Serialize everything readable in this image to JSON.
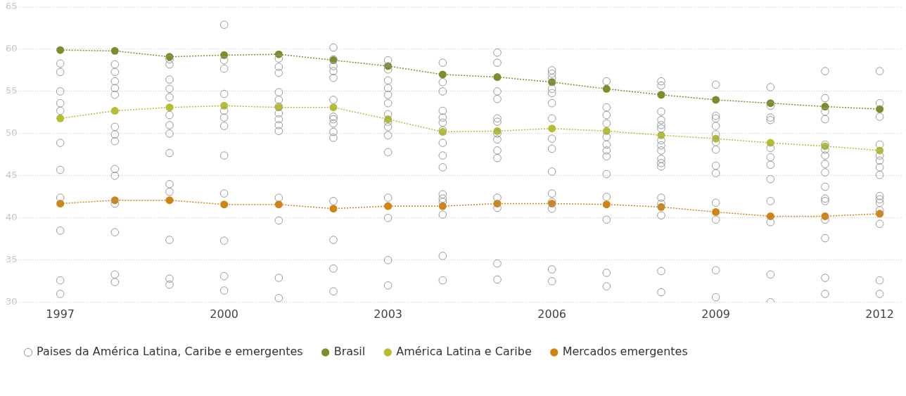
{
  "chart_data": {
    "type": "line",
    "x": [
      1997,
      1998,
      1999,
      2000,
      2001,
      2002,
      2003,
      2004,
      2005,
      2006,
      2007,
      2008,
      2009,
      2010,
      2011,
      2012
    ],
    "xlim": [
      1996,
      2012.4
    ],
    "xticks": [
      1997,
      2000,
      2003,
      2006,
      2009,
      2012
    ],
    "ylim": [
      30,
      65
    ],
    "yticks": [
      30,
      35,
      40,
      45,
      50,
      55,
      60,
      65
    ],
    "grid": "y",
    "legend": "bottom left",
    "marker": "circle",
    "line_style": "dotted",
    "series": [
      {
        "name": "Brasil",
        "color": "#7b8d2c",
        "values": [
          59.9,
          59.8,
          59.1,
          59.3,
          59.4,
          58.7,
          58.0,
          57.0,
          56.7,
          56.1,
          55.3,
          54.6,
          54.0,
          53.6,
          53.2,
          52.9
        ]
      },
      {
        "name": "América Latina e Caribe",
        "color": "#b5bd35",
        "values": [
          51.8,
          52.7,
          53.1,
          53.3,
          53.1,
          53.1,
          51.7,
          50.2,
          50.3,
          50.6,
          50.3,
          49.8,
          49.4,
          48.9,
          48.5,
          48.0
        ]
      },
      {
        "name": "Mercados emergentes",
        "color": "#cf8414",
        "values": [
          41.7,
          42.1,
          42.1,
          41.6,
          41.6,
          41.1,
          41.4,
          41.4,
          41.7,
          41.7,
          41.6,
          41.3,
          40.7,
          40.2,
          40.2,
          40.5
        ]
      },
      {
        "type": "scatter",
        "name": "Paises da América Latina, Caribe e emergentes",
        "color": "#999999",
        "x": [
          1997,
          1997,
          1997,
          1997,
          1997,
          1997,
          1997,
          1997,
          1997,
          1997,
          1997,
          1998,
          1998,
          1998,
          1998,
          1998,
          1998,
          1998,
          1998,
          1998,
          1998,
          1998,
          1998,
          1998,
          1998,
          1999,
          1999,
          1999,
          1999,
          1999,
          1999,
          1999,
          1999,
          1999,
          1999,
          1999,
          1999,
          1999,
          1999,
          2000,
          2000,
          2000,
          2000,
          2000,
          2000,
          2000,
          2000,
          2000,
          2000,
          2000,
          2000,
          2001,
          2001,
          2001,
          2001,
          2001,
          2001,
          2001,
          2001,
          2001,
          2001,
          2001,
          2001,
          2001,
          2001,
          2002,
          2002,
          2002,
          2002,
          2002,
          2002,
          2002,
          2002,
          2002,
          2002,
          2002,
          2002,
          2002,
          2002,
          2002,
          2003,
          2003,
          2003,
          2003,
          2003,
          2003,
          2003,
          2003,
          2003,
          2003,
          2003,
          2003,
          2003,
          2003,
          2003,
          2004,
          2004,
          2004,
          2004,
          2004,
          2004,
          2004,
          2004,
          2004,
          2004,
          2004,
          2004,
          2004,
          2004,
          2004,
          2004,
          2005,
          2005,
          2005,
          2005,
          2005,
          2005,
          2005,
          2005,
          2005,
          2005,
          2005,
          2005,
          2005,
          2005,
          2006,
          2006,
          2006,
          2006,
          2006,
          2006,
          2006,
          2006,
          2006,
          2006,
          2006,
          2006,
          2006,
          2006,
          2006,
          2007,
          2007,
          2007,
          2007,
          2007,
          2007,
          2007,
          2007,
          2007,
          2007,
          2007,
          2007,
          2007,
          2008,
          2008,
          2008,
          2008,
          2008,
          2008,
          2008,
          2008,
          2008,
          2008,
          2008,
          2008,
          2008,
          2008,
          2008,
          2008,
          2008,
          2009,
          2009,
          2009,
          2009,
          2009,
          2009,
          2009,
          2009,
          2009,
          2009,
          2009,
          2009,
          2009,
          2010,
          2010,
          2010,
          2010,
          2010,
          2010,
          2010,
          2010,
          2010,
          2010,
          2010,
          2010,
          2011,
          2011,
          2011,
          2011,
          2011,
          2011,
          2011,
          2011,
          2011,
          2011,
          2011,
          2011,
          2011,
          2011,
          2011,
          2011,
          2012,
          2012,
          2012,
          2012,
          2012,
          2012,
          2012,
          2012,
          2012,
          2012,
          2012,
          2012,
          2012,
          2012,
          2012
        ],
        "values": [
          58.3,
          57.3,
          55.0,
          53.6,
          52.7,
          48.9,
          45.7,
          42.4,
          38.5,
          32.6,
          31.0,
          58.2,
          57.3,
          56.2,
          55.4,
          54.6,
          50.8,
          49.9,
          49.1,
          45.8,
          45.0,
          41.7,
          38.3,
          33.3,
          32.4,
          58.8,
          58.2,
          56.4,
          55.3,
          54.3,
          52.2,
          51.0,
          50.0,
          47.7,
          44.0,
          43.1,
          37.4,
          32.8,
          32.1,
          62.9,
          58.7,
          57.7,
          54.7,
          52.7,
          51.9,
          50.9,
          47.4,
          42.9,
          37.3,
          33.1,
          31.4,
          58.9,
          57.9,
          57.2,
          54.9,
          54.0,
          53.2,
          52.4,
          51.7,
          51.0,
          50.3,
          42.4,
          39.7,
          32.9,
          30.5,
          60.2,
          58.8,
          58.0,
          57.4,
          56.6,
          54.0,
          52.0,
          51.7,
          51.2,
          50.2,
          49.5,
          42.0,
          37.4,
          34.0,
          31.3,
          58.7,
          57.6,
          56.3,
          55.4,
          54.6,
          53.6,
          52.3,
          51.4,
          50.8,
          49.8,
          47.8,
          42.4,
          40.0,
          35.0,
          32.0,
          58.4,
          56.1,
          55.0,
          52.7,
          51.9,
          51.3,
          50.4,
          48.9,
          47.4,
          46.0,
          42.8,
          42.3,
          41.9,
          40.4,
          35.5,
          32.6,
          59.6,
          58.4,
          55.0,
          54.1,
          51.8,
          51.4,
          50.0,
          49.3,
          48.0,
          47.1,
          42.4,
          41.2,
          34.6,
          32.7,
          57.5,
          57.1,
          56.6,
          55.3,
          54.8,
          53.6,
          51.8,
          49.4,
          48.2,
          45.5,
          42.9,
          41.9,
          41.1,
          33.9,
          32.5,
          56.2,
          53.1,
          52.2,
          51.2,
          49.6,
          48.7,
          48.0,
          47.3,
          45.2,
          42.5,
          39.8,
          33.5,
          31.9,
          56.2,
          55.7,
          52.6,
          51.6,
          51.0,
          50.6,
          49.2,
          48.6,
          48.0,
          47.0,
          46.5,
          46.1,
          42.4,
          41.7,
          40.3,
          33.7,
          31.2,
          55.8,
          52.1,
          51.8,
          50.9,
          49.9,
          49.0,
          48.1,
          46.2,
          45.3,
          41.8,
          39.8,
          33.8,
          30.6,
          55.5,
          53.3,
          51.9,
          51.6,
          48.3,
          47.2,
          46.3,
          44.6,
          42.0,
          39.5,
          33.3,
          30.0,
          57.4,
          54.2,
          52.6,
          51.7,
          48.7,
          48.1,
          47.4,
          46.4,
          45.4,
          43.7,
          42.3,
          42.0,
          39.8,
          37.6,
          32.9,
          31.0,
          57.4,
          53.6,
          52.0,
          48.7,
          47.4,
          46.8,
          46.0,
          45.1,
          42.6,
          42.2,
          41.8,
          40.9,
          39.3,
          32.6,
          31.0
        ]
      }
    ]
  }
}
